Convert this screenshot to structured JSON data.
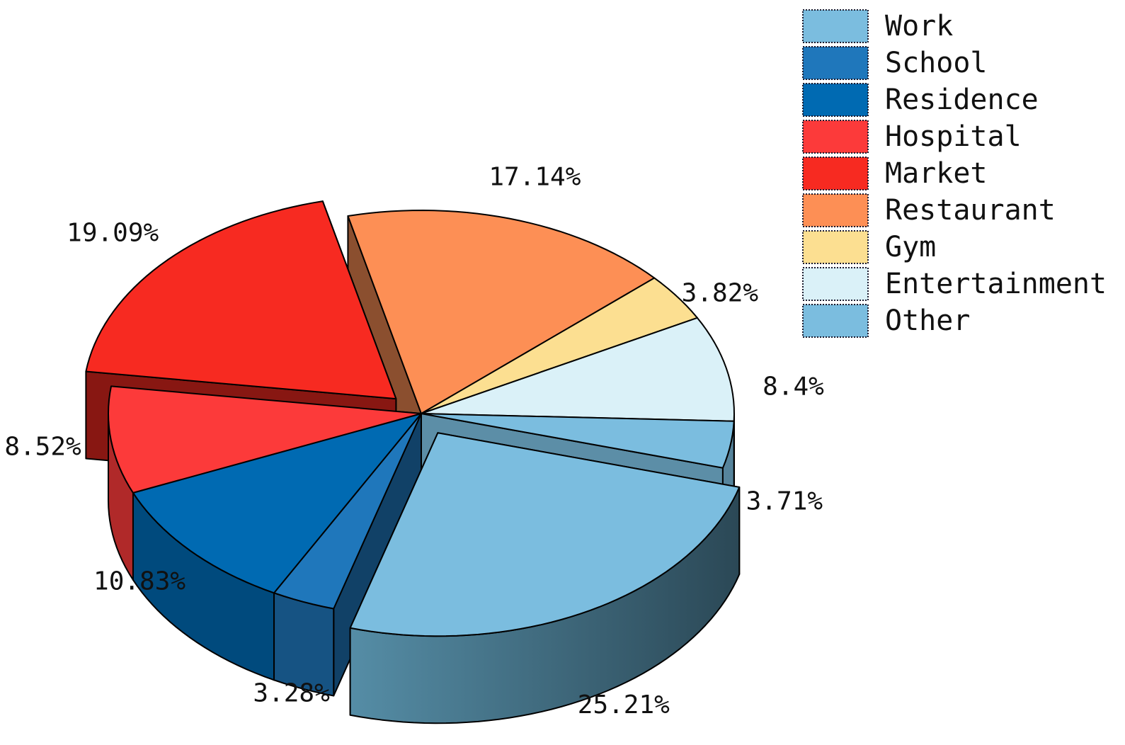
{
  "chart_data": {
    "type": "pie",
    "style": "3d-exploded",
    "title": "",
    "legend_position": "top-right",
    "slices": [
      {
        "name": "Work",
        "value": 25.21,
        "label": "25.21%",
        "color": "#7bbddf",
        "exploded": true
      },
      {
        "name": "School",
        "value": 3.28,
        "label": "3.28%",
        "color": "#1f77bb"
      },
      {
        "name": "Residence",
        "value": 10.83,
        "label": "10.83%",
        "color": "#006ab2"
      },
      {
        "name": "Hospital",
        "value": 8.52,
        "label": "8.52%",
        "color": "#fc3a3a"
      },
      {
        "name": "Market",
        "value": 19.09,
        "label": "19.09%",
        "color": "#f72a21",
        "exploded": true
      },
      {
        "name": "Restaurant",
        "value": 17.14,
        "label": "17.14%",
        "color": "#fd8f55"
      },
      {
        "name": "Gym",
        "value": 3.82,
        "label": "3.82%",
        "color": "#fcdf91"
      },
      {
        "name": "Entertainment",
        "value": 8.4,
        "label": "8.4%",
        "color": "#daf1f8"
      },
      {
        "name": "Other",
        "value": 3.71,
        "label": "3.71%",
        "color": "#7bbddf"
      }
    ]
  }
}
